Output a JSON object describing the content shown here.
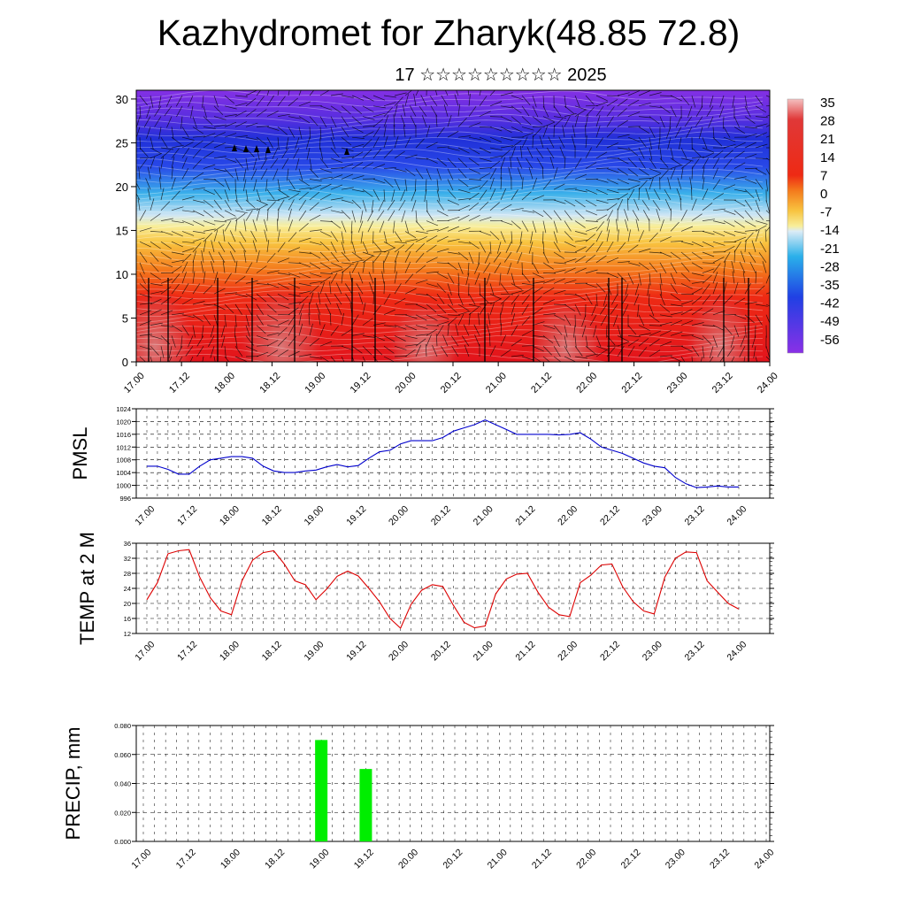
{
  "title": "Kazhydromet for Zharyk(48.85 72.8)",
  "subtitle": "17 ☆☆☆☆☆☆☆☆☆ 2025",
  "x_tick_labels": [
    "17.00",
    "17.12",
    "18.00",
    "18.12",
    "19.00",
    "19.12",
    "20.00",
    "20.12",
    "21.00",
    "21.12",
    "22.00",
    "22.12",
    "23.00",
    "23.12",
    "24.00"
  ],
  "chart_data": [
    {
      "type": "heatmap",
      "title": "",
      "ylabel": "",
      "ylim": [
        0,
        31
      ],
      "y_ticks": [
        0,
        5,
        10,
        15,
        20,
        25,
        30
      ],
      "colorbar_labels": [
        "35",
        "28",
        "21",
        "14",
        "7",
        "0",
        "-7",
        "-14",
        "-21",
        "-28",
        "-35",
        "-42",
        "-49",
        "-56"
      ],
      "colors": {
        "warm": "#e8101a",
        "hot_core": "#d86060",
        "mid": "#f7e070",
        "cold": "#3048e0",
        "coldest": "#8a2ce6"
      }
    },
    {
      "type": "line",
      "ylabel": "PMSL",
      "ylim": [
        996,
        1024
      ],
      "y_ticks": [
        996,
        1000,
        1004,
        1008,
        1012,
        1016,
        1020,
        1024
      ],
      "color": "#0000cc",
      "x": [
        0,
        3,
        6,
        9,
        12,
        15,
        18,
        21,
        24,
        27,
        30,
        33,
        36,
        39,
        42,
        45,
        48,
        51,
        54,
        57,
        60,
        63,
        66,
        69,
        72,
        75,
        78,
        81,
        84,
        87,
        90,
        93,
        96,
        99,
        102,
        105,
        108,
        111,
        114,
        117,
        120,
        123,
        126,
        129,
        132,
        135,
        138,
        141,
        144,
        147,
        150,
        153,
        156,
        159,
        162,
        165,
        168
      ],
      "values": [
        1006,
        1006,
        1005,
        1003.5,
        1003.5,
        1006,
        1008,
        1008.5,
        1009,
        1009,
        1008.5,
        1006,
        1004.5,
        1004,
        1004,
        1004.5,
        1004.8,
        1005.8,
        1006.5,
        1005.8,
        1006.2,
        1008.5,
        1010.5,
        1011,
        1013,
        1014,
        1014,
        1014,
        1015,
        1017,
        1018,
        1019,
        1020.5,
        1019,
        1017.5,
        1016,
        1016,
        1016,
        1016,
        1015.8,
        1016,
        1016.5,
        1014.5,
        1012,
        1011,
        1010,
        1008.5,
        1007,
        1006,
        1005.5,
        1002.5,
        1000.5,
        999.3,
        999.5,
        999.8,
        999.5,
        999.5
      ]
    },
    {
      "type": "line",
      "ylabel": "TEMP at 2 M",
      "ylim": [
        12,
        36
      ],
      "y_ticks": [
        12,
        16,
        20,
        24,
        28,
        32,
        36
      ],
      "color": "#dd0000",
      "x": [
        0,
        3,
        6,
        9,
        12,
        15,
        18,
        21,
        24,
        27,
        30,
        33,
        36,
        39,
        42,
        45,
        48,
        51,
        54,
        57,
        60,
        63,
        66,
        69,
        72,
        75,
        78,
        81,
        84,
        87,
        90,
        93,
        96,
        99,
        102,
        105,
        108,
        111,
        114,
        117,
        120,
        123,
        126,
        129,
        132,
        135,
        138,
        141,
        144,
        147,
        150,
        153,
        156,
        159,
        162,
        165,
        168
      ],
      "values": [
        21,
        25.5,
        33.2,
        34,
        34.3,
        27,
        21.5,
        18,
        17,
        26,
        31.5,
        33.5,
        34,
        30.5,
        26,
        25,
        21,
        23.8,
        27.2,
        28.6,
        27.3,
        24,
        20.5,
        16,
        13.4,
        19.8,
        23.5,
        25,
        24.5,
        19.5,
        15,
        13.5,
        14,
        22.5,
        26.5,
        27.8,
        28,
        23,
        19,
        17,
        16.5,
        25.5,
        27.5,
        30.2,
        30.5,
        24.5,
        20.5,
        18,
        17.2,
        27,
        32,
        33.7,
        33.5,
        26,
        23,
        20,
        18.5
      ]
    },
    {
      "type": "bar",
      "ylabel": "PRECIP, mm",
      "ylim": [
        0,
        0.08
      ],
      "y_ticks": [
        "0.000",
        "0.020",
        "0.040",
        "0.060",
        "0.080"
      ],
      "color": "#00ee00",
      "x": [
        48,
        60
      ],
      "values": [
        0.07,
        0.05
      ]
    }
  ]
}
